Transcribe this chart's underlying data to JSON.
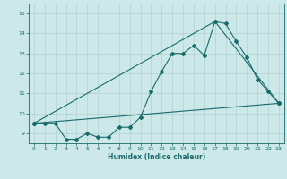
{
  "title": "",
  "xlabel": "Humidex (Indice chaleur)",
  "bg_color": "#cce8e8",
  "line_color": "#1a6b6b",
  "grid_color": "#b0d0d0",
  "xlim": [
    -0.5,
    23.5
  ],
  "ylim": [
    8.5,
    15.5
  ],
  "xticks": [
    0,
    1,
    2,
    3,
    4,
    5,
    6,
    7,
    8,
    9,
    10,
    11,
    12,
    13,
    14,
    15,
    16,
    17,
    18,
    19,
    20,
    21,
    22,
    23
  ],
  "yticks": [
    9,
    10,
    11,
    12,
    13,
    14,
    15
  ],
  "series": [
    {
      "x": [
        0,
        1,
        2,
        3,
        4,
        5,
        6,
        7,
        8,
        9,
        10,
        11,
        12,
        13,
        14,
        15,
        16,
        17,
        18,
        19,
        20,
        21,
        22,
        23
      ],
      "y": [
        9.5,
        9.5,
        9.5,
        8.7,
        8.7,
        9.0,
        8.8,
        8.8,
        9.3,
        9.3,
        9.8,
        11.1,
        12.1,
        13.0,
        13.0,
        13.4,
        12.9,
        14.6,
        14.5,
        13.6,
        12.8,
        11.7,
        11.1,
        10.5
      ]
    },
    {
      "x": [
        0,
        23
      ],
      "y": [
        9.5,
        10.5
      ]
    },
    {
      "x": [
        0,
        17,
        23
      ],
      "y": [
        9.5,
        14.6,
        10.5
      ]
    }
  ]
}
